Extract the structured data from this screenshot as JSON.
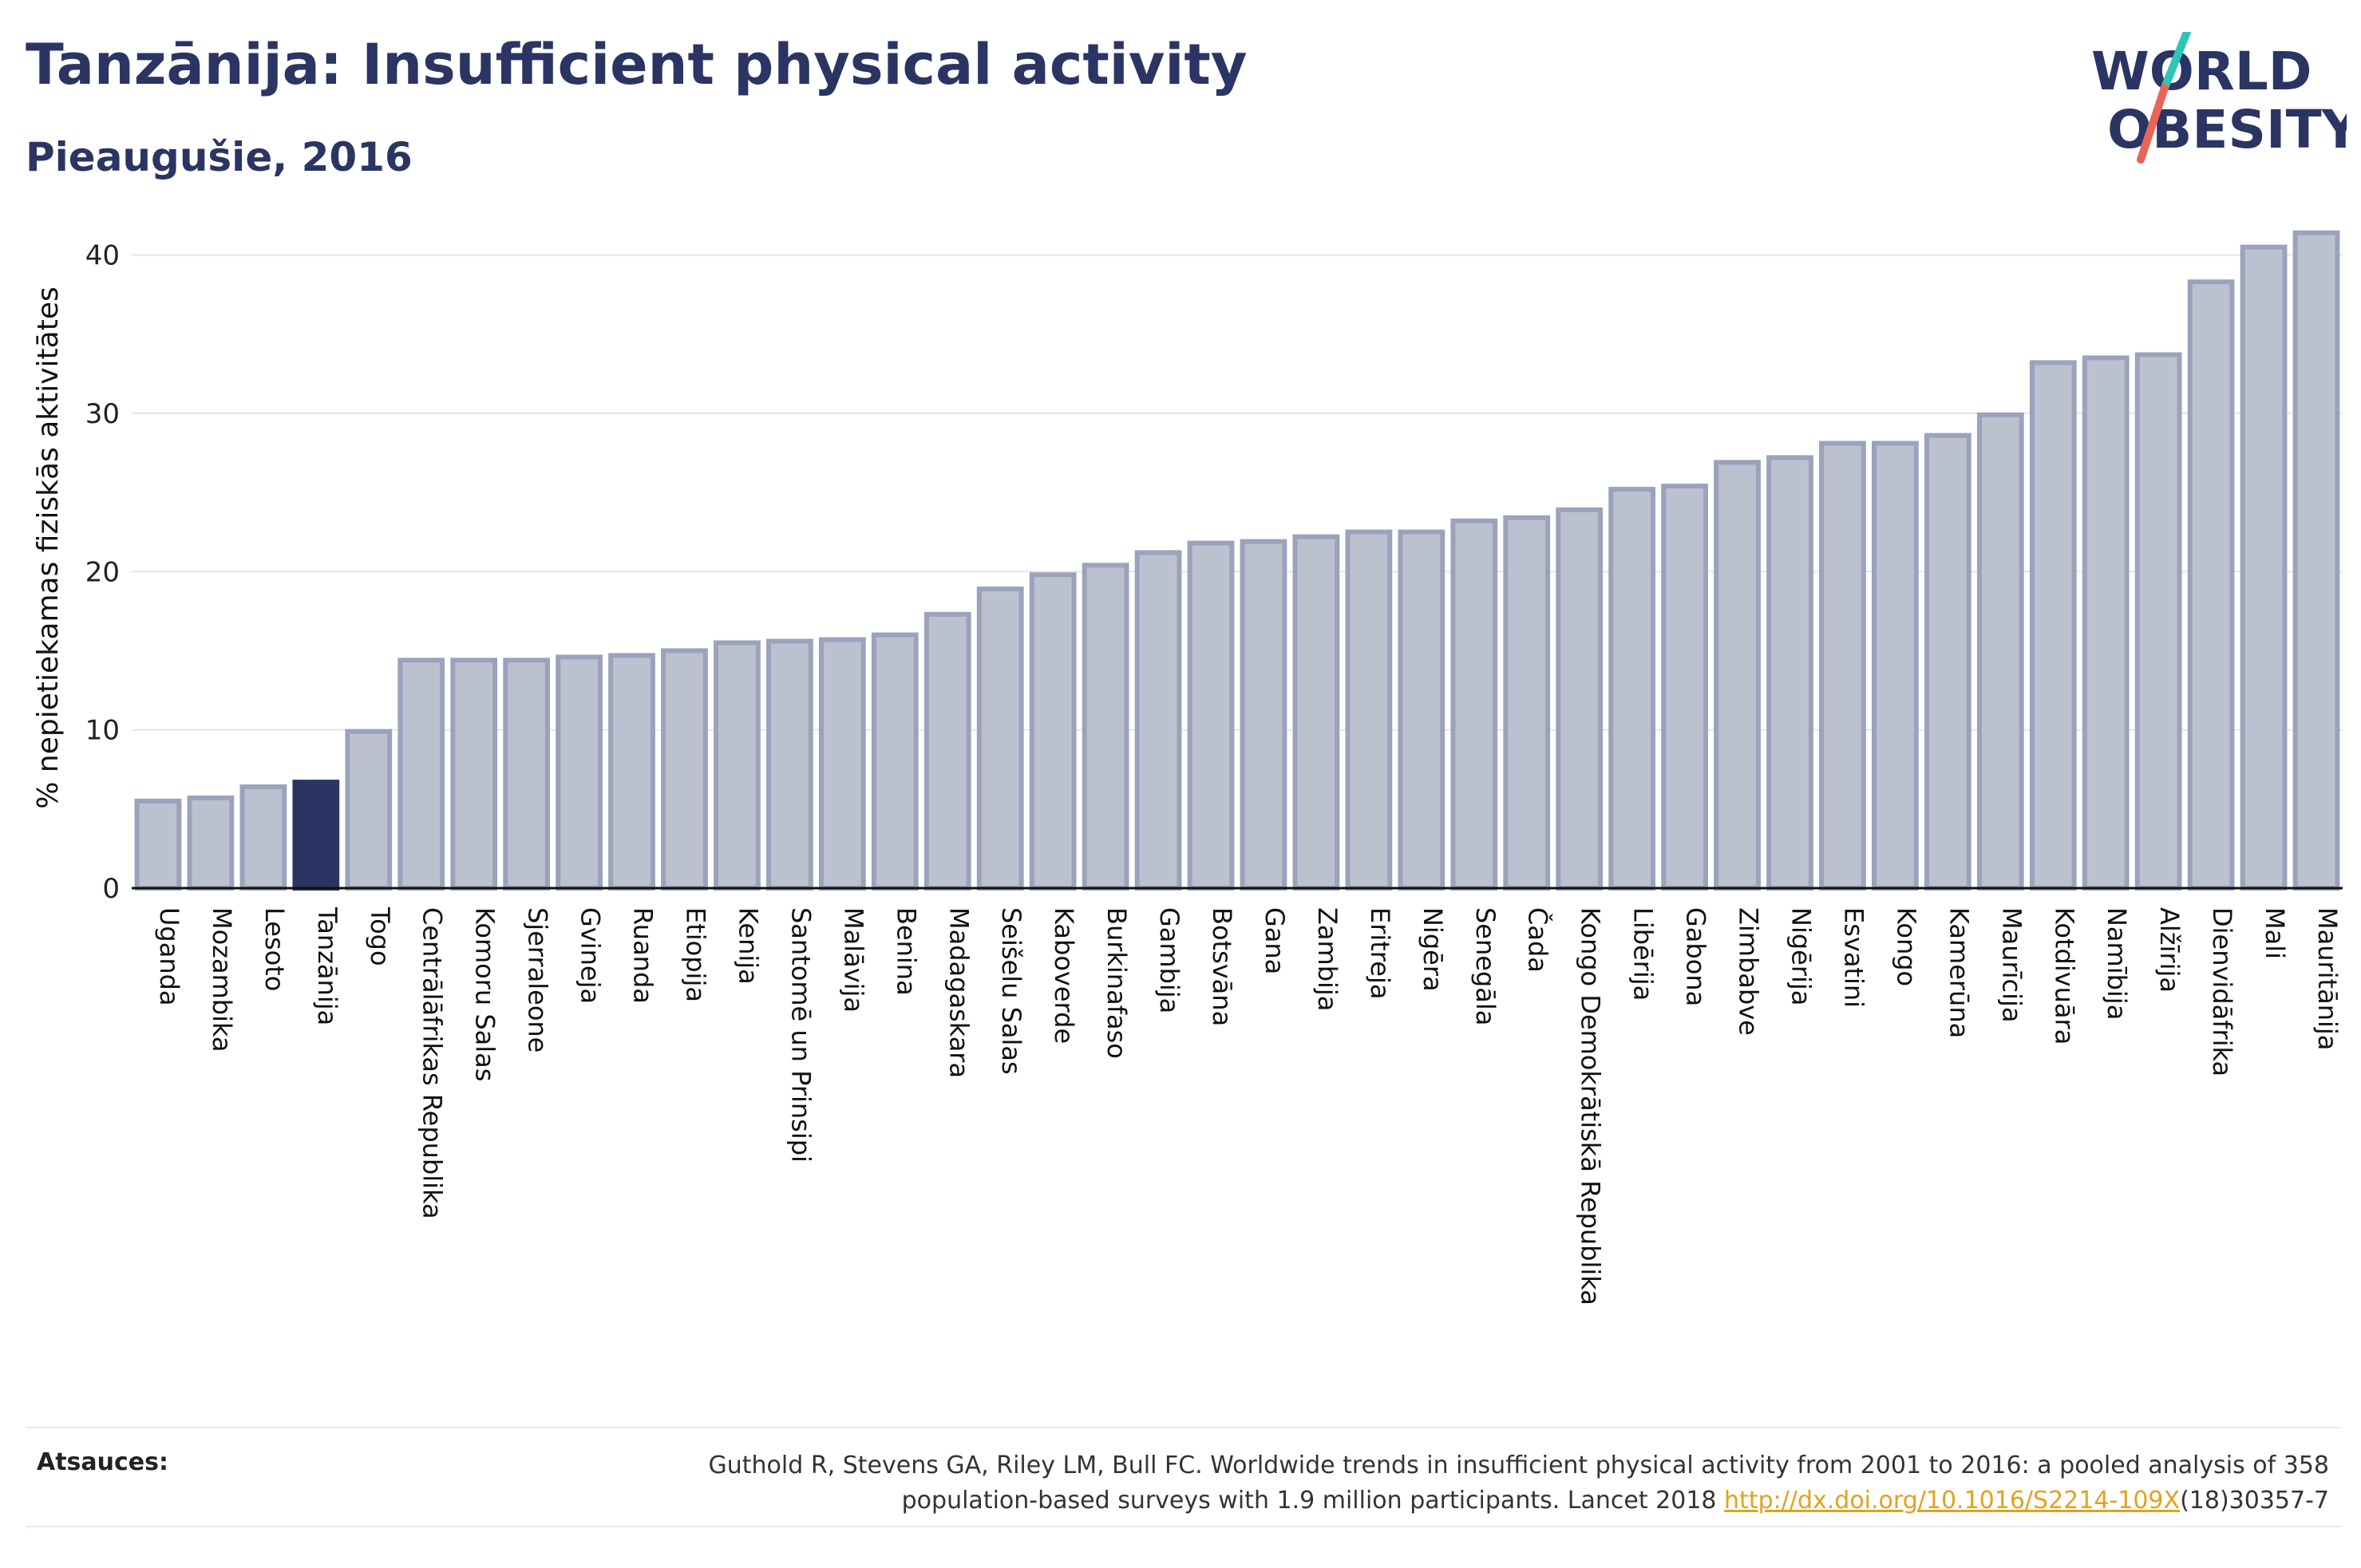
{
  "header": {
    "title": "Tanzānija: Insufficient physical activity",
    "subtitle": "Pieaugušie, 2016"
  },
  "logo": {
    "line1": "WORLD",
    "line2": "OBESITY",
    "slash_color_top": "#2ec4b6",
    "slash_color_bottom": "#e9655a"
  },
  "chart_data": {
    "type": "bar",
    "ylabel": "% nepietiekamas fiziskās aktivitātes",
    "xlabel": "",
    "ylim": [
      0,
      43
    ],
    "yticks": [
      0,
      10,
      20,
      30,
      40
    ],
    "grid": true,
    "highlight": "Tanzānija",
    "colors": {
      "bar": "#bcc1d0",
      "bar_edge": "#9ba2bb",
      "highlight": "#2a3563",
      "grid": "#e6e6e6"
    },
    "categories": [
      "Uganda",
      "Mozambika",
      "Lesoto",
      "Tanzānija",
      "Togo",
      "Centrālāfrikas Republika",
      "Komoru Salas",
      "Sjerraleone",
      "Gvineja",
      "Ruanda",
      "Etiopija",
      "Kenija",
      "Santomē un Prinsipi",
      "Malāvija",
      "Benina",
      "Madagaskara",
      "Seišelu Salas",
      "Kaboverde",
      "Burkinafaso",
      "Gambija",
      "Botsvāna",
      "Gana",
      "Zambija",
      "Eritreja",
      "Nigēra",
      "Senegāla",
      "Čada",
      "Kongo Demokrātiskā Republika",
      "Libērija",
      "Gabona",
      "Zimbabve",
      "Nigērija",
      "Esvatini",
      "Kongo",
      "Kamerūna",
      "Maurīcija",
      "Kotdivuāra",
      "Namībija",
      "Alžīrija",
      "Dienvidāfrika",
      "Mali",
      "Mauritānija"
    ],
    "values": [
      5.5,
      5.7,
      6.4,
      6.7,
      9.9,
      14.4,
      14.4,
      14.4,
      14.6,
      14.7,
      15.0,
      15.5,
      15.6,
      15.7,
      16.0,
      17.3,
      18.9,
      19.8,
      20.4,
      21.2,
      21.8,
      21.9,
      22.2,
      22.5,
      22.5,
      23.2,
      23.4,
      23.9,
      25.2,
      25.4,
      26.9,
      27.2,
      28.1,
      28.1,
      28.6,
      29.9,
      33.2,
      33.5,
      33.7,
      38.3,
      40.5,
      41.4
    ]
  },
  "footer": {
    "sources_label": "Atsauces:",
    "sources_line1": "Guthold R, Stevens GA, Riley LM, Bull FC. Worldwide trends in insufficient physical activity from 2001 to 2016: a pooled analysis of 358",
    "sources_line2": "population-based surveys with 1.9 million participants. Lancet 2018 ",
    "sources_link": "http://dx.doi.org/10.1016/S2214-109X",
    "sources_suffix": "(18)30357-7"
  }
}
